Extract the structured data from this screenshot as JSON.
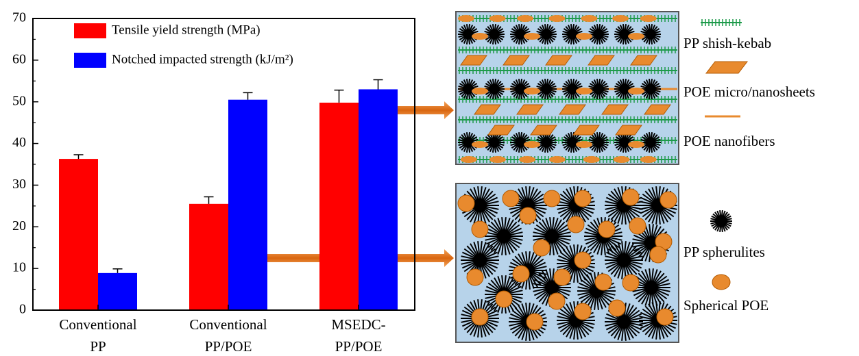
{
  "chart_data": {
    "type": "bar",
    "categories": [
      [
        "Conventional",
        "PP"
      ],
      [
        "Conventional",
        "PP/POE"
      ],
      [
        "MSEDC-",
        "PP/POE"
      ]
    ],
    "series": [
      {
        "name": "Tensile yield strength (MPa)",
        "color": "#ff0000",
        "values": [
          36.3,
          25.5,
          49.8
        ],
        "errors": [
          1.0,
          1.7,
          3.0
        ]
      },
      {
        "name": "Notched impacted strength (kJ/m²)",
        "color": "#0000ff",
        "values": [
          8.9,
          50.5,
          53.0
        ],
        "errors": [
          1.0,
          1.7,
          2.3
        ]
      }
    ],
    "ylim": [
      0,
      70
    ],
    "yticks": [
      0,
      10,
      20,
      30,
      40,
      50,
      60,
      70
    ]
  },
  "diagram": {
    "legend_top": [
      "PP shish-kebab",
      "POE micro/nanosheets",
      "POE nanofibers"
    ],
    "legend_bottom": [
      "PP spherulites",
      "Spherical POE"
    ]
  }
}
